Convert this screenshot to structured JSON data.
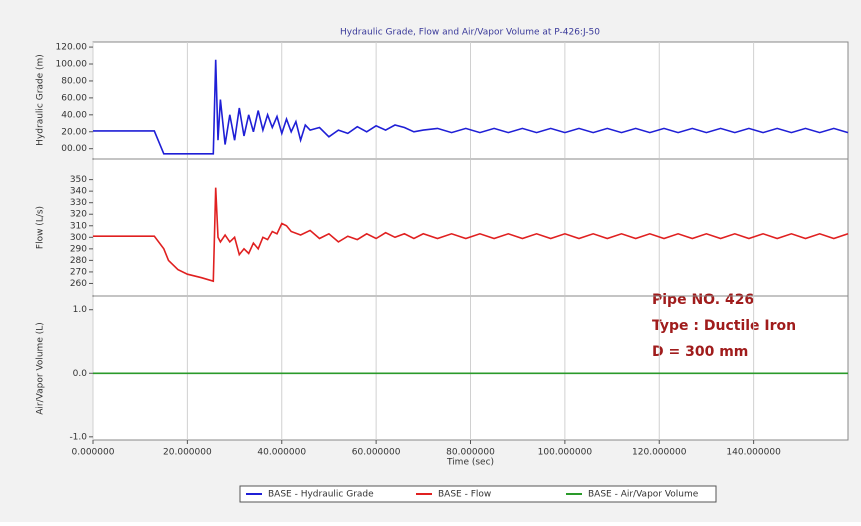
{
  "chart_data": [
    {
      "type": "line",
      "title": "Hydraulic Grade, Flow and Air/Vapor Volume at P-426:J-50",
      "y_label": "Hydraulic Grade (m)",
      "xlim": [
        0,
        160
      ],
      "ylim": [
        -11,
        126
      ],
      "yticks": [
        {
          "value": 120,
          "label": "120.00"
        },
        {
          "value": 100,
          "label": "100.00"
        },
        {
          "value": 80,
          "label": "80.00"
        },
        {
          "value": 60,
          "label": "60.00"
        },
        {
          "value": 40,
          "label": "40.00"
        },
        {
          "value": 20,
          "label": "20.00"
        },
        {
          "value": 0,
          "label": "00.00"
        }
      ],
      "series": [
        {
          "name": "BASE - Hydraulic Grade",
          "color": "#1f1fd6",
          "x": [
            0,
            13,
            15,
            25.5,
            26,
            26.5,
            27,
            28,
            29,
            30,
            31,
            32,
            33,
            34,
            35,
            36,
            37,
            38,
            39,
            40,
            41,
            42,
            43,
            44,
            45,
            46,
            48,
            50,
            52,
            54,
            56,
            58,
            60,
            62,
            64,
            66,
            68,
            70,
            73,
            76,
            79,
            82,
            85,
            88,
            91,
            94,
            97,
            100,
            103,
            106,
            109,
            112,
            115,
            118,
            121,
            124,
            127,
            130,
            133,
            136,
            139,
            142,
            145,
            148,
            151,
            154,
            157,
            160
          ],
          "values": [
            21,
            21,
            -6,
            -6,
            105,
            10,
            58,
            5,
            40,
            10,
            48,
            15,
            40,
            20,
            45,
            22,
            40,
            25,
            38,
            18,
            35,
            20,
            32,
            10,
            28,
            22,
            25,
            14,
            22,
            18,
            26,
            20,
            27,
            22,
            28,
            25,
            20,
            22,
            24,
            19,
            24,
            19,
            24,
            19,
            24,
            19,
            24,
            19,
            24,
            19,
            24,
            19,
            24,
            19,
            24,
            19,
            24,
            19,
            24,
            19,
            24,
            19,
            24,
            19,
            24,
            19,
            24,
            19
          ]
        }
      ]
    },
    {
      "type": "line",
      "y_label": "Flow (L/s)",
      "xlim": [
        0,
        160
      ],
      "ylim": [
        250,
        367
      ],
      "yticks": [
        350,
        340,
        330,
        320,
        310,
        300,
        290,
        280,
        270,
        260
      ],
      "annotations": [
        "Pipe NO. 426",
        "Type : Ductile Iron",
        "D = 300 mm"
      ],
      "series": [
        {
          "name": "BASE - Flow",
          "color": "#e02020",
          "x": [
            0,
            13,
            15,
            16,
            18,
            20,
            23,
            25.5,
            26,
            26.5,
            27,
            28,
            29,
            30,
            31,
            32,
            33,
            34,
            35,
            36,
            37,
            38,
            39,
            40,
            41,
            42,
            44,
            46,
            48,
            50,
            52,
            54,
            56,
            58,
            60,
            62,
            64,
            66,
            68,
            70,
            73,
            76,
            79,
            82,
            85,
            88,
            91,
            94,
            97,
            100,
            103,
            106,
            109,
            112,
            115,
            118,
            121,
            124,
            127,
            130,
            133,
            136,
            139,
            142,
            145,
            148,
            151,
            154,
            157,
            160
          ],
          "values": [
            301,
            301,
            290,
            280,
            272,
            268,
            265,
            262,
            343,
            300,
            296,
            302,
            296,
            300,
            285,
            290,
            286,
            295,
            290,
            300,
            298,
            305,
            303,
            312,
            310,
            305,
            302,
            306,
            299,
            303,
            296,
            301,
            298,
            303,
            299,
            304,
            300,
            303,
            299,
            303,
            299,
            303,
            299,
            303,
            299,
            303,
            299,
            303,
            299,
            303,
            299,
            303,
            299,
            303,
            299,
            303,
            299,
            303,
            299,
            303,
            299,
            303,
            299,
            303,
            299,
            303,
            299,
            303,
            299,
            303
          ]
        }
      ]
    },
    {
      "type": "line",
      "y_label": "Air/Vapor Volume (L)",
      "x_label": "Time (sec)",
      "xlim": [
        0,
        160
      ],
      "ylim": [
        -1.05,
        1.2
      ],
      "yticks": [
        {
          "value": 1,
          "label": "1.0"
        },
        {
          "value": 0,
          "label": "0.0"
        },
        {
          "value": -1,
          "label": "-1.0"
        }
      ],
      "xticks": [
        {
          "value": 0,
          "label": "0.000000"
        },
        {
          "value": 20,
          "label": "20.000000"
        },
        {
          "value": 40,
          "label": "40.000000"
        },
        {
          "value": 60,
          "label": "60.000000"
        },
        {
          "value": 80,
          "label": "80.000000"
        },
        {
          "value": 100,
          "label": "100.000000"
        },
        {
          "value": 120,
          "label": "120.000000"
        },
        {
          "value": 140,
          "label": "140.000000"
        }
      ],
      "series": [
        {
          "name": "BASE - Air/Vapor Volume",
          "color": "#2a9a2a",
          "x": [
            0,
            160
          ],
          "values": [
            0,
            0
          ]
        }
      ]
    }
  ]
}
